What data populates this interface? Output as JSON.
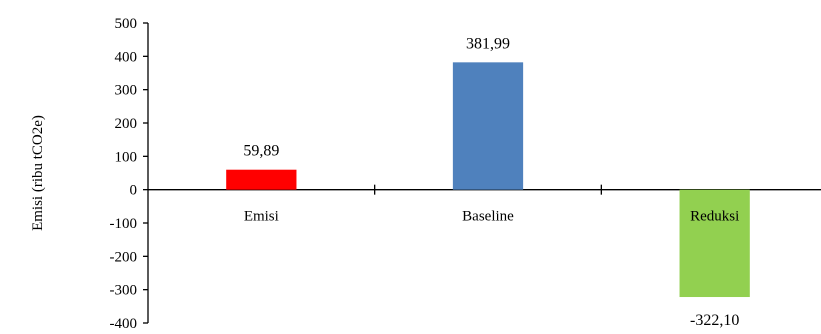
{
  "chart_data": {
    "type": "bar",
    "title": "",
    "xlabel": "",
    "ylabel": "Emisi (ribu tCO2e)",
    "ylim": [
      -400,
      500
    ],
    "yticks": [
      500,
      400,
      300,
      200,
      100,
      0,
      -100,
      -200,
      -300,
      -400
    ],
    "grid": false,
    "legend": "none",
    "categories": [
      "Emisi",
      "Baseline",
      "Reduksi"
    ],
    "values": [
      59.89,
      381.99,
      -322.1
    ],
    "data_labels": [
      "59,89",
      "381,99",
      "-322,10"
    ],
    "colors": [
      "#ff0000",
      "#4f81bd",
      "#92d050"
    ]
  }
}
